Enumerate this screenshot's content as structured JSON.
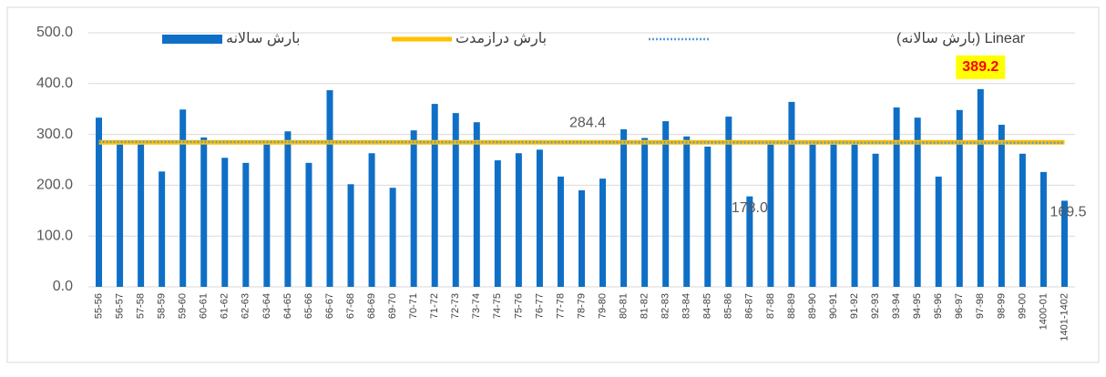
{
  "chart_data": {
    "type": "bar",
    "categories": [
      "55-56",
      "56-57",
      "57-58",
      "58-59",
      "59-60",
      "60-61",
      "61-62",
      "62-63",
      "63-64",
      "64-65",
      "65-66",
      "66-67",
      "67-68",
      "68-69",
      "69-70",
      "70-71",
      "71-72",
      "72-73",
      "73-74",
      "74-75",
      "75-76",
      "76-77",
      "77-78",
      "78-79",
      "79-80",
      "80-81",
      "81-82",
      "82-83",
      "83-84",
      "84-85",
      "85-86",
      "86-87",
      "87-88",
      "88-89",
      "89-90",
      "90-91",
      "91-92",
      "92-93",
      "93-94",
      "94-95",
      "95-96",
      "96-97",
      "97-98",
      "98-99",
      "99-00",
      "1400-01",
      "1401-1402"
    ],
    "series": [
      {
        "name": "بارش سالانه",
        "color": "#0f6fc6",
        "values": [
          333,
          280,
          280,
          227,
          349,
          294,
          254,
          244,
          280,
          306,
          244,
          387,
          202,
          263,
          195,
          308,
          360,
          342,
          324,
          249,
          263,
          270,
          217,
          190,
          213,
          310,
          293,
          326,
          296,
          276,
          335,
          178.0,
          280,
          364,
          280,
          280,
          280,
          262,
          353,
          333,
          217,
          348,
          389.2,
          319,
          262,
          226,
          169.5
        ],
        "value_labels": {
          "31": "178.0",
          "42": "389.2",
          "46": "169.5"
        }
      }
    ],
    "mean": {
      "name": "بارش درازمدت",
      "color": "#ffc000",
      "value": 284.4,
      "value_label": "284.4"
    },
    "trend": {
      "name": "Linear (بارش سالانه)",
      "color": "#5b9bd5",
      "start": 285.5,
      "end": 283.5
    },
    "highlight": {
      "index": 42,
      "box": "#ffff00",
      "text": "#ff0000"
    },
    "ylim": [
      0,
      500
    ],
    "yticks": [
      {
        "value": 0,
        "label": "0.0"
      },
      {
        "value": 100,
        "label": "100.0"
      },
      {
        "value": 200,
        "label": "200.0"
      },
      {
        "value": 300,
        "label": "300.0"
      },
      {
        "value": 400,
        "label": "400.0"
      },
      {
        "value": 500,
        "label": "500.0"
      }
    ],
    "grid": true
  }
}
